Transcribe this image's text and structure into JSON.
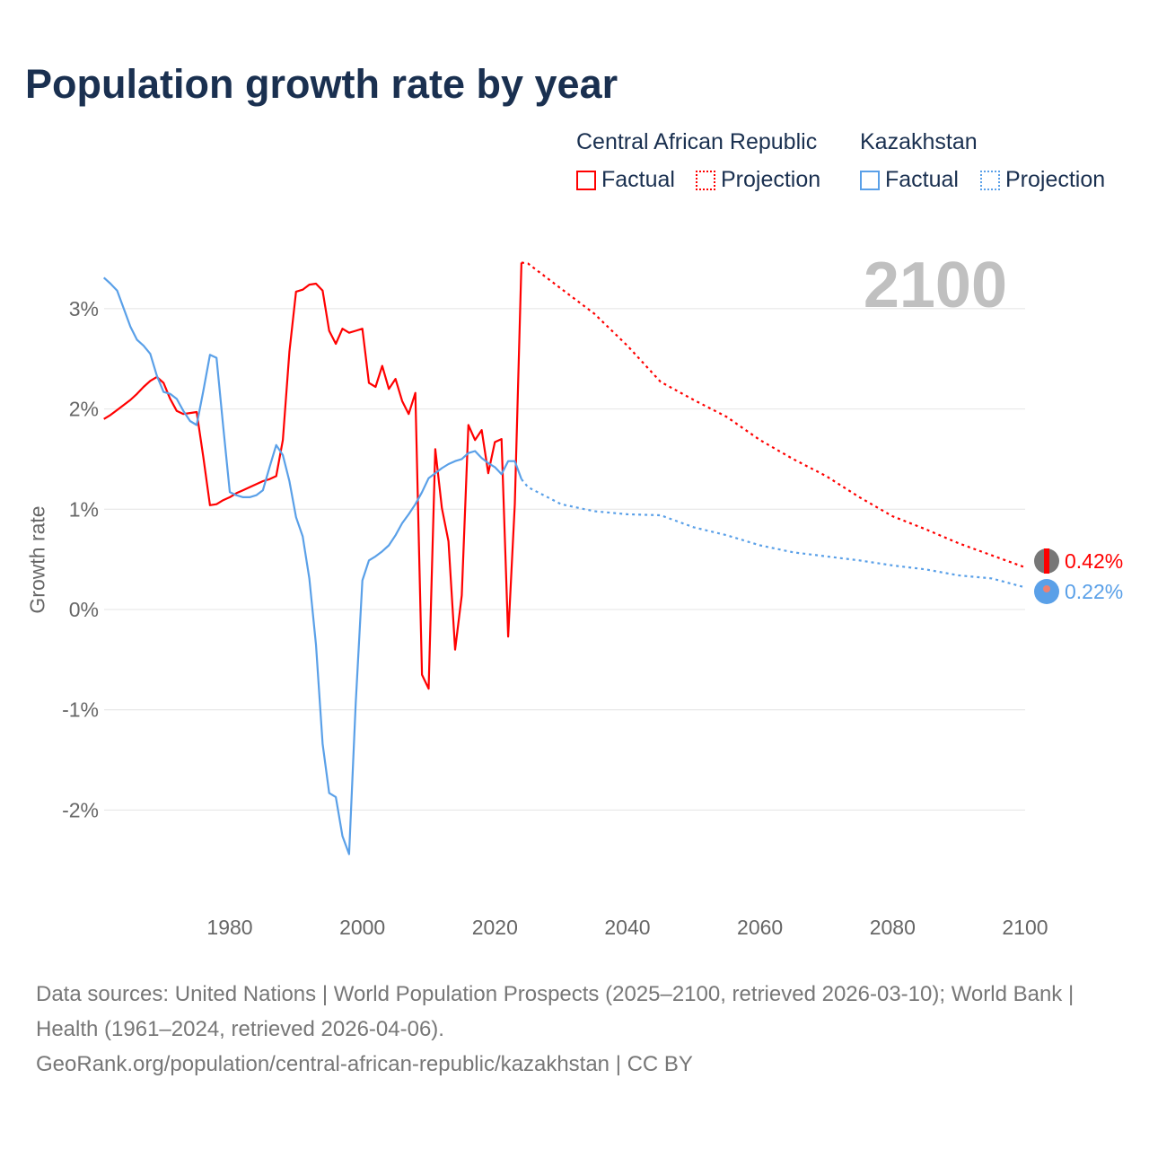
{
  "chart_data": {
    "type": "line",
    "title": "Population growth rate by year",
    "ylabel": "Growth rate",
    "xlabel": "",
    "xlim": [
      1961,
      2100
    ],
    "ylim": [
      -2.9,
      3.6
    ],
    "x_ticks": [
      "1980",
      "2000",
      "2020",
      "2040",
      "2060",
      "2080",
      "2100"
    ],
    "y_ticks": [
      {
        "v": 3,
        "label": "3%"
      },
      {
        "v": 2,
        "label": "2%"
      },
      {
        "v": 1,
        "label": "1%"
      },
      {
        "v": 0,
        "label": "0%"
      },
      {
        "v": -1,
        "label": "-1%"
      },
      {
        "v": -2,
        "label": "-2%"
      }
    ],
    "year_overlay": "2100",
    "legend": {
      "groups": [
        "Central African Republic",
        "Kazakhstan"
      ],
      "items": [
        "Factual",
        "Projection",
        "Factual",
        "Projection"
      ]
    },
    "series": [
      {
        "name": "Central African Republic",
        "color": "#ff0000",
        "end_label": "0.42%",
        "factual": {
          "start_year": 1961,
          "values": [
            1.9,
            1.94,
            1.99,
            2.04,
            2.09,
            2.15,
            2.22,
            2.28,
            2.32,
            2.26,
            2.1,
            1.98,
            1.95,
            1.96,
            1.97,
            1.52,
            1.04,
            1.05,
            1.09,
            1.12,
            1.16,
            1.19,
            1.22,
            1.25,
            1.28,
            1.3,
            1.33,
            1.69,
            2.57,
            3.17,
            3.19,
            3.24,
            3.25,
            3.18,
            2.78,
            2.65,
            2.8,
            2.76,
            2.78,
            2.8,
            2.26,
            2.22,
            2.43,
            2.2,
            2.3,
            2.08,
            1.95,
            2.16,
            -0.65,
            -0.79,
            1.6,
            1.01,
            0.68,
            -0.4,
            0.14,
            1.84,
            1.69,
            1.79,
            1.36,
            1.67,
            1.7,
            -0.27,
            1.05,
            3.46
          ]
        },
        "projection": {
          "years": [
            2024,
            2025,
            2030,
            2035,
            2040,
            2045,
            2050,
            2055,
            2060,
            2065,
            2070,
            2075,
            2080,
            2085,
            2090,
            2095,
            2100
          ],
          "values": [
            3.46,
            3.45,
            3.2,
            2.95,
            2.63,
            2.27,
            2.09,
            1.92,
            1.69,
            1.5,
            1.33,
            1.12,
            0.93,
            0.8,
            0.66,
            0.54,
            0.42
          ]
        }
      },
      {
        "name": "Kazakhstan",
        "color": "#5aa0e8",
        "end_label": "0.22%",
        "factual": {
          "start_year": 1961,
          "values": [
            3.31,
            3.25,
            3.18,
            3.0,
            2.82,
            2.69,
            2.63,
            2.55,
            2.33,
            2.17,
            2.15,
            2.1,
            1.98,
            1.88,
            1.84,
            2.18,
            2.54,
            2.51,
            1.83,
            1.17,
            1.14,
            1.12,
            1.12,
            1.14,
            1.19,
            1.42,
            1.64,
            1.54,
            1.28,
            0.92,
            0.73,
            0.31,
            -0.35,
            -1.34,
            -1.83,
            -1.87,
            -2.26,
            -2.44,
            -0.93,
            0.29,
            0.49,
            0.53,
            0.58,
            0.64,
            0.74,
            0.86,
            0.95,
            1.05,
            1.17,
            1.31,
            1.36,
            1.41,
            1.45,
            1.48,
            1.5,
            1.56,
            1.58,
            1.51,
            1.46,
            1.42,
            1.35,
            1.48,
            1.48,
            1.3
          ]
        },
        "projection": {
          "years": [
            2024,
            2025,
            2030,
            2035,
            2040,
            2045,
            2050,
            2055,
            2060,
            2065,
            2070,
            2075,
            2080,
            2085,
            2090,
            2095,
            2100
          ],
          "values": [
            1.3,
            1.22,
            1.05,
            0.98,
            0.95,
            0.94,
            0.82,
            0.74,
            0.64,
            0.57,
            0.53,
            0.49,
            0.44,
            0.4,
            0.34,
            0.31,
            0.22
          ]
        }
      }
    ]
  },
  "footer": {
    "sources": "Data sources: United Nations | World Population Prospects (2025–2100, retrieved 2026-03-10); World Bank | Health (1961–2024, retrieved 2026-04-06).",
    "link": "GeoRank.org/population/central-african-republic/kazakhstan | CC BY"
  }
}
